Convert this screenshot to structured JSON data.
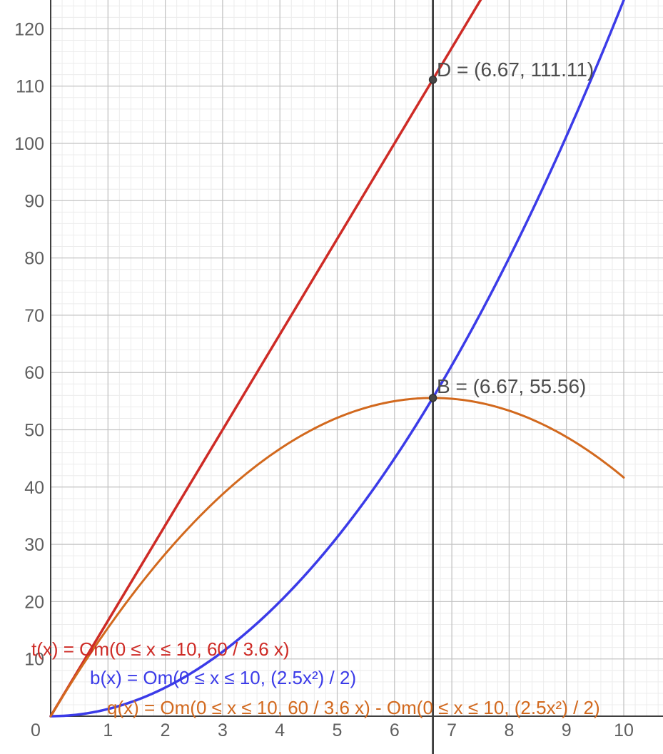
{
  "chart_data": {
    "type": "line",
    "title": "",
    "xlabel": "",
    "ylabel": "",
    "x_range": [
      0,
      10.68
    ],
    "y_range": [
      0,
      125.2
    ],
    "grid": {
      "major_step_x": 1,
      "major_step_y": 10,
      "minor_step_x": 0.2,
      "minor_step_y": 2,
      "major_color": "#C2C2C2",
      "minor_color": "#ECECEC",
      "axis_color": "#3F3F3F"
    },
    "x_ticks": [
      "0",
      "1",
      "2",
      "3",
      "4",
      "5",
      "6",
      "7",
      "8",
      "9",
      "10"
    ],
    "x_tick_values": [
      0,
      1,
      2,
      3,
      4,
      5,
      6,
      7,
      8,
      9,
      10
    ],
    "y_ticks": [
      "10",
      "20",
      "30",
      "40",
      "50",
      "60",
      "70",
      "80",
      "90",
      "100",
      "110",
      "120"
    ],
    "y_tick_values": [
      10,
      20,
      30,
      40,
      50,
      60,
      70,
      80,
      90,
      100,
      110,
      120
    ],
    "tick_color": "#5F5F5F",
    "functions": [
      {
        "name": "t",
        "label": "t(x) = Om(0 ≤ x ≤ 10, 60 / 3.6 x)",
        "color": "#CE2B26",
        "domain": [
          0,
          10
        ],
        "poly_coeffs": [
          0,
          16.6667
        ],
        "stroke_width": 3.5
      },
      {
        "name": "b",
        "label": "b(x) = Om(0 ≤ x ≤ 10, (2.5x²) / 2)",
        "color": "#3B3BE8",
        "domain": [
          0,
          10
        ],
        "poly_coeffs": [
          0,
          0,
          1.25
        ],
        "stroke_width": 3.5
      },
      {
        "name": "q",
        "label": "q(x) = Om(0 ≤ x ≤ 10, 60 / 3.6 x) - Om(0 ≤ x ≤ 10, (2.5x²) / 2)",
        "color": "#D2691E",
        "domain": [
          0,
          10
        ],
        "poly_coeffs": [
          0,
          16.6667,
          -1.25
        ],
        "stroke_width": 3
      }
    ],
    "points": [
      {
        "name": "D",
        "x": 6.67,
        "y": 111.11,
        "label": "D = (6.67, 111.11)",
        "color": "#474747"
      },
      {
        "name": "B",
        "x": 6.67,
        "y": 55.56,
        "label": "B = (6.67, 55.56)",
        "color": "#474747"
      }
    ],
    "vertical_line": {
      "x": 6.67,
      "color": "#3C3C3C",
      "stroke_width": 2.8
    }
  }
}
